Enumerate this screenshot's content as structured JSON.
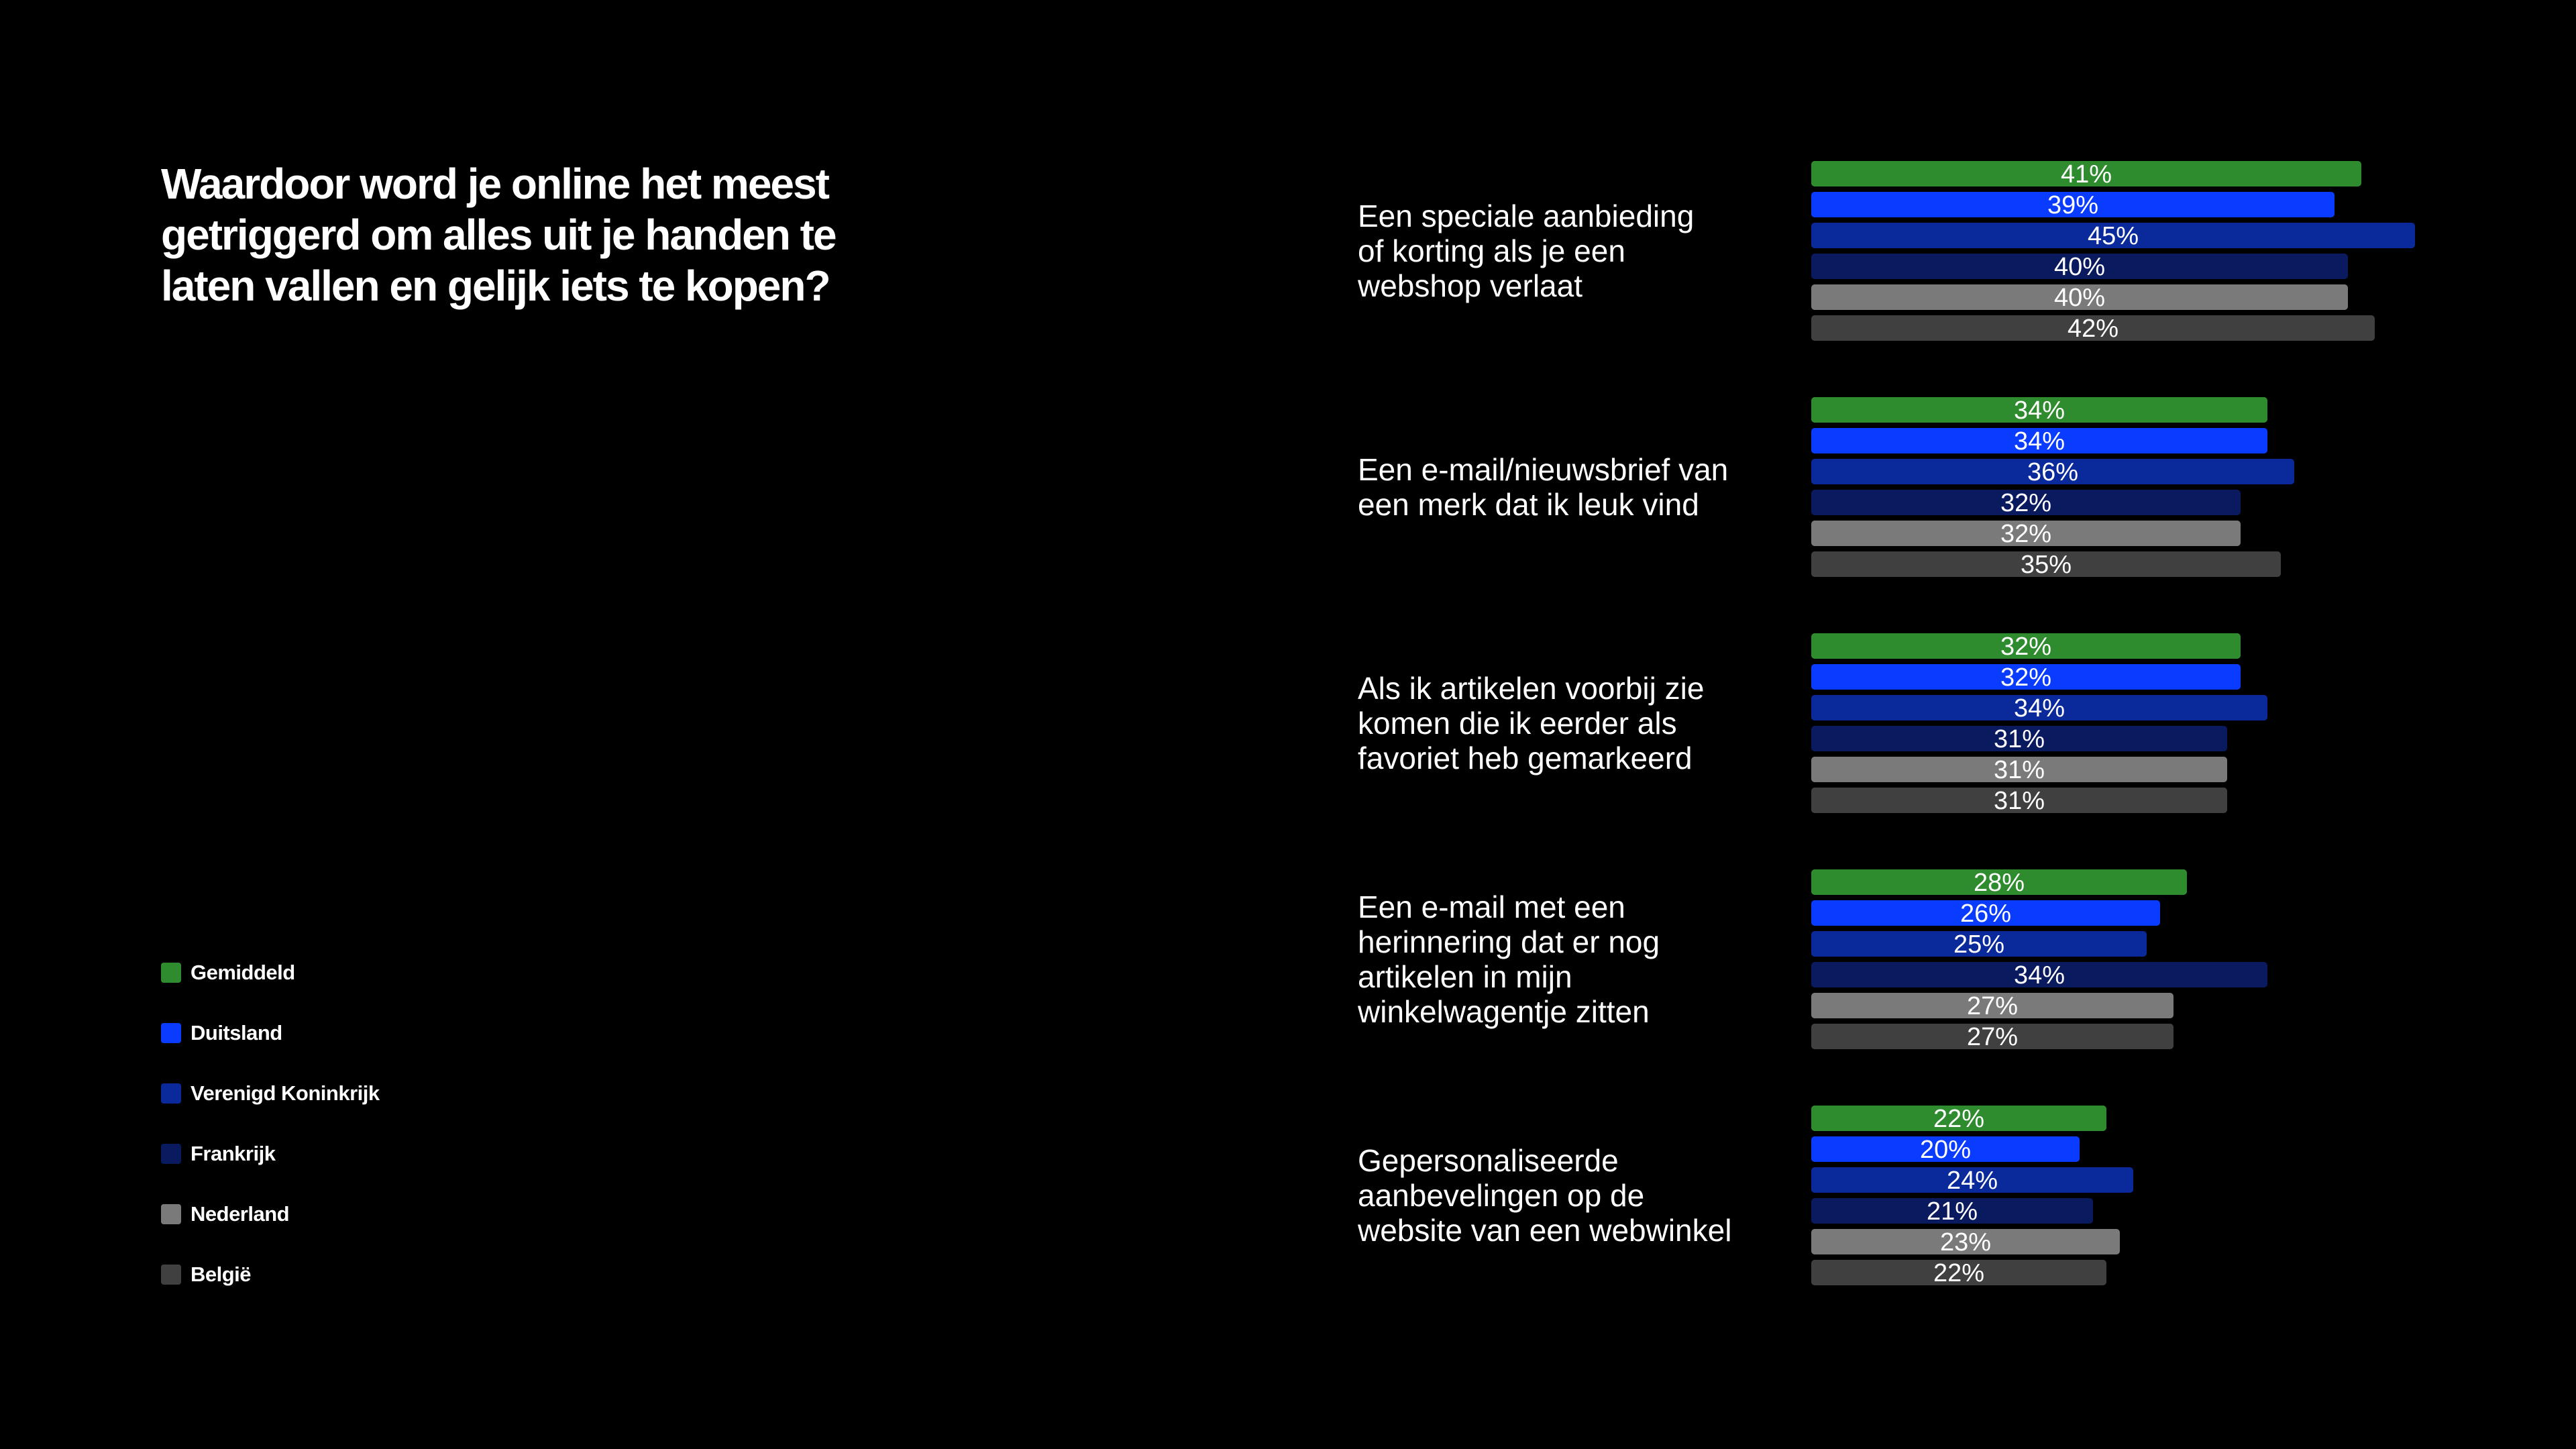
{
  "title": "Waardoor word je online het meest getriggerd om alles uit je handen te laten vallen en gelijk iets te kopen?",
  "legend": {
    "items": [
      {
        "label": "Gemiddeld",
        "color": "#2e8b2e"
      },
      {
        "label": "Duitsland",
        "color": "#0a3cff"
      },
      {
        "label": "Verenigd Koninkrijk",
        "color": "#0a2a9c"
      },
      {
        "label": "Frankrijk",
        "color": "#0a1a5e"
      },
      {
        "label": "Nederland",
        "color": "#7a7a7a"
      },
      {
        "label": "België",
        "color": "#404040"
      }
    ]
  },
  "chart_data": {
    "type": "bar",
    "orientation": "horizontal",
    "title": "Waardoor word je online het meest getriggerd om alles uit je handen te laten vallen en gelijk iets te kopen?",
    "value_format": "percent",
    "xlim": [
      0,
      45
    ],
    "grid": false,
    "legend_position": "bottom-left",
    "categories": [
      [
        "Een speciale aanbieding",
        "of korting als je een",
        "webshop verlaat"
      ],
      [
        "Een e-mail/nieuwsbrief van",
        "een merk dat ik leuk vind"
      ],
      [
        "Als ik artikelen voorbij zie",
        "komen die ik eerder als",
        "favoriet heb gemarkeerd"
      ],
      [
        "Een e-mail met een",
        "herinnering dat er nog",
        "artikelen in mijn",
        "winkelwagentje zitten"
      ],
      [
        "Gepersonaliseerde",
        "aanbevelingen op de",
        "website van een webwinkel"
      ]
    ],
    "series": [
      {
        "name": "Gemiddeld",
        "color": "#2e8b2e",
        "values": [
          41,
          34,
          32,
          28,
          22
        ]
      },
      {
        "name": "Duitsland",
        "color": "#0a3cff",
        "values": [
          39,
          34,
          32,
          26,
          20
        ]
      },
      {
        "name": "Verenigd Koninkrijk",
        "color": "#0a2a9c",
        "values": [
          45,
          36,
          34,
          25,
          24
        ]
      },
      {
        "name": "Frankrijk",
        "color": "#0a1a5e",
        "values": [
          40,
          32,
          31,
          34,
          21
        ]
      },
      {
        "name": "Nederland",
        "color": "#7a7a7a",
        "values": [
          40,
          32,
          31,
          27,
          23
        ]
      },
      {
        "name": "België",
        "color": "#404040",
        "values": [
          42,
          35,
          31,
          27,
          22
        ]
      }
    ]
  }
}
